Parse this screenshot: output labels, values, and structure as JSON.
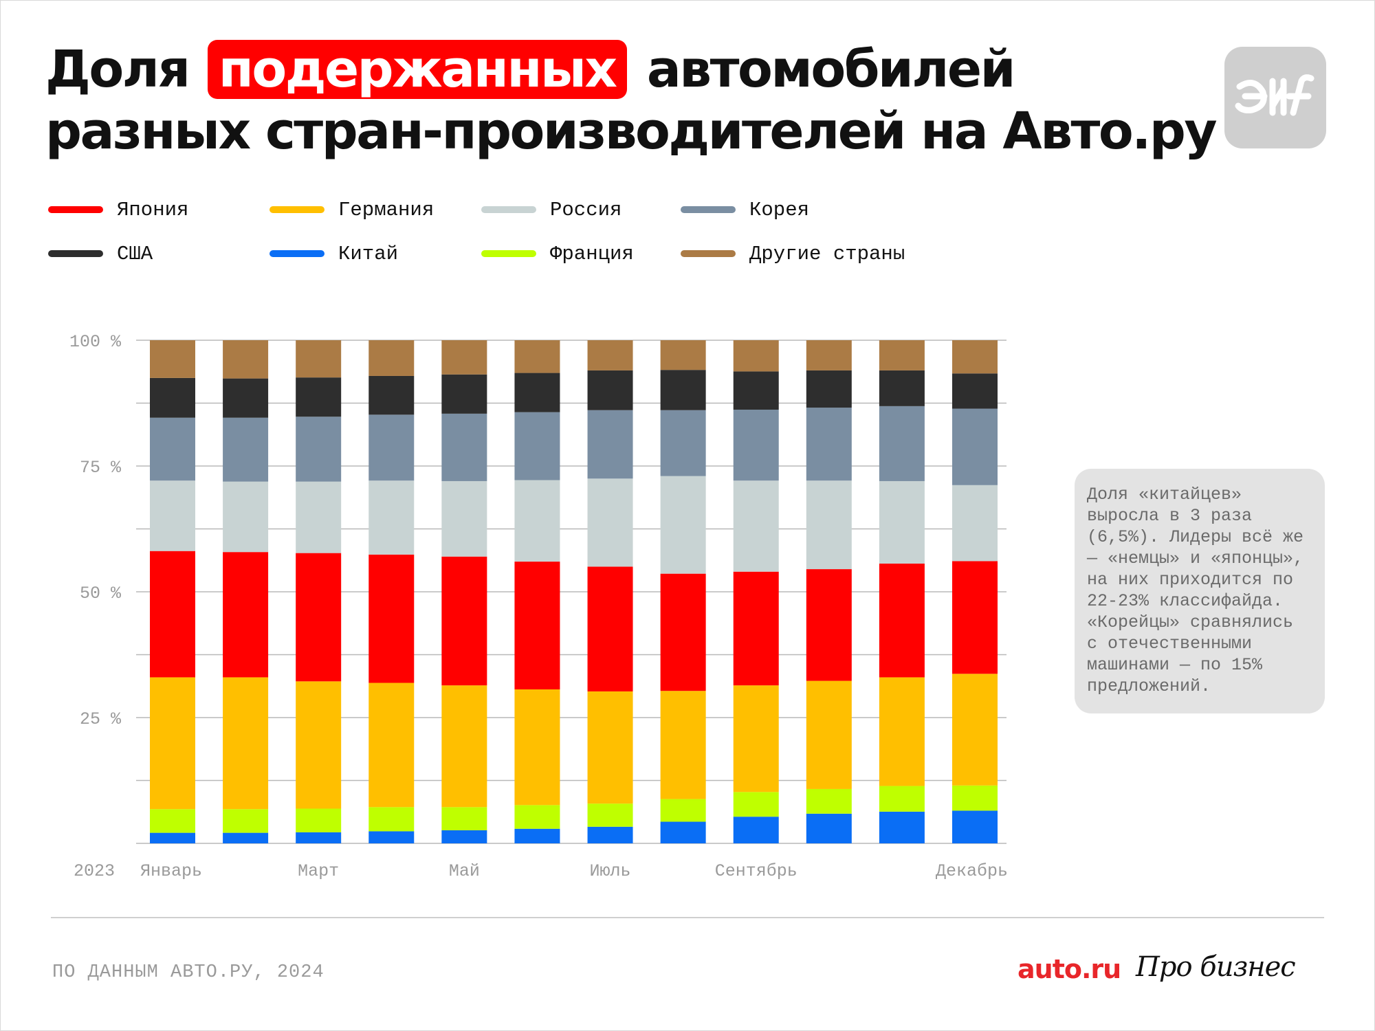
{
  "title": {
    "line1_before": "Доля ",
    "line1_highlight": "подержанных",
    "line1_after": " автомобилей",
    "line2": "разных стран-производителей на Авто.ру"
  },
  "logo": {
    "label": "AиF"
  },
  "colors": {
    "accent": "#ff0000",
    "Япония": "#ff0000",
    "Германия": "#ffbf00",
    "Россия": "#c8d3d3",
    "Корея": "#7a8ea2",
    "США": "#2e2e2e",
    "Китай": "#0a6ef5",
    "Франция": "#bfff00",
    "Другие страны": "#ab7b45"
  },
  "legend": [
    {
      "label": "Япония",
      "color": "#ff0000"
    },
    {
      "label": "Германия",
      "color": "#ffbf00"
    },
    {
      "label": "Россия",
      "color": "#c8d3d3"
    },
    {
      "label": "Корея",
      "color": "#7a8ea2"
    },
    {
      "label": "США",
      "color": "#2e2e2e"
    },
    {
      "label": "Китай",
      "color": "#0a6ef5"
    },
    {
      "label": "Франция",
      "color": "#bfff00"
    },
    {
      "label": "Другие страны",
      "color": "#ab7b45"
    }
  ],
  "chart_data": {
    "type": "bar",
    "stacked": true,
    "grid": true,
    "legend_position": "top-left",
    "year_label": "2023",
    "x_tick_labels": [
      {
        "index": 0,
        "label": "Январь"
      },
      {
        "index": 2,
        "label": "Март"
      },
      {
        "index": 4,
        "label": "Май"
      },
      {
        "index": 6,
        "label": "Июль"
      },
      {
        "index": 8,
        "label": "Сентябрь"
      },
      {
        "index": 11,
        "label": "Декабрь"
      }
    ],
    "y_ticks": [
      {
        "value": 100,
        "label": "100 %"
      },
      {
        "value": 75,
        "label": "75 %"
      },
      {
        "value": 50,
        "label": "50 %"
      },
      {
        "value": 25,
        "label": "25 %"
      }
    ],
    "y_gridlines": [
      0,
      12.5,
      25,
      37.5,
      50,
      62.5,
      75,
      87.5,
      100
    ],
    "ylim": [
      0,
      100
    ],
    "n_months": 12,
    "series": [
      {
        "name": "Китай",
        "color": "#0a6ef5",
        "values": [
          2.1,
          2.1,
          2.2,
          2.4,
          2.6,
          2.9,
          3.3,
          4.3,
          5.3,
          5.9,
          6.3,
          6.5
        ]
      },
      {
        "name": "Франция",
        "color": "#bfff00",
        "values": [
          4.7,
          4.7,
          4.7,
          4.8,
          4.6,
          4.7,
          4.6,
          4.5,
          4.9,
          4.9,
          5.1,
          5.0
        ]
      },
      {
        "name": "Германия",
        "color": "#ffbf00",
        "values": [
          26.2,
          26.2,
          25.3,
          24.7,
          24.2,
          23.0,
          22.3,
          21.5,
          21.2,
          21.5,
          21.6,
          22.2
        ]
      },
      {
        "name": "Япония",
        "color": "#ff0000",
        "values": [
          25.1,
          24.9,
          25.5,
          25.5,
          25.6,
          25.4,
          24.8,
          23.3,
          22.6,
          22.2,
          22.6,
          22.4
        ]
      },
      {
        "name": "Россия",
        "color": "#c8d3d3",
        "values": [
          14.0,
          14.0,
          14.2,
          14.7,
          15.0,
          16.2,
          17.5,
          19.4,
          18.1,
          17.6,
          16.4,
          15.1
        ]
      },
      {
        "name": "Корея",
        "color": "#7a8ea2",
        "values": [
          12.5,
          12.7,
          12.9,
          13.1,
          13.4,
          13.5,
          13.6,
          13.1,
          14.1,
          14.5,
          14.9,
          15.2
        ]
      },
      {
        "name": "США",
        "color": "#2e2e2e",
        "values": [
          7.9,
          7.8,
          7.8,
          7.7,
          7.8,
          7.8,
          7.9,
          8.0,
          7.6,
          7.4,
          7.1,
          7.0
        ]
      },
      {
        "name": "Другие страны",
        "color": "#ab7b45",
        "values": [
          7.5,
          7.6,
          7.4,
          7.1,
          6.8,
          6.5,
          6.0,
          5.9,
          6.2,
          6.0,
          6.0,
          6.6
        ]
      }
    ]
  },
  "note": {
    "lines": [
      "Доля «китайцев»",
      "выросла в 3 раза",
      "(6,5%). Лидеры всё же",
      "— «немцы» и «японцы»,",
      "на них приходится по",
      "22-23% классифайда.",
      "«Корейцы» сравнялись",
      "с отечественными",
      "машинами — по 15%",
      "предложений."
    ]
  },
  "footer": {
    "source": "ПО ДАННЫМ АВТО.РУ, 2024",
    "brand_auto": "auto.ru",
    "brand_pro": "Про бизнес"
  }
}
